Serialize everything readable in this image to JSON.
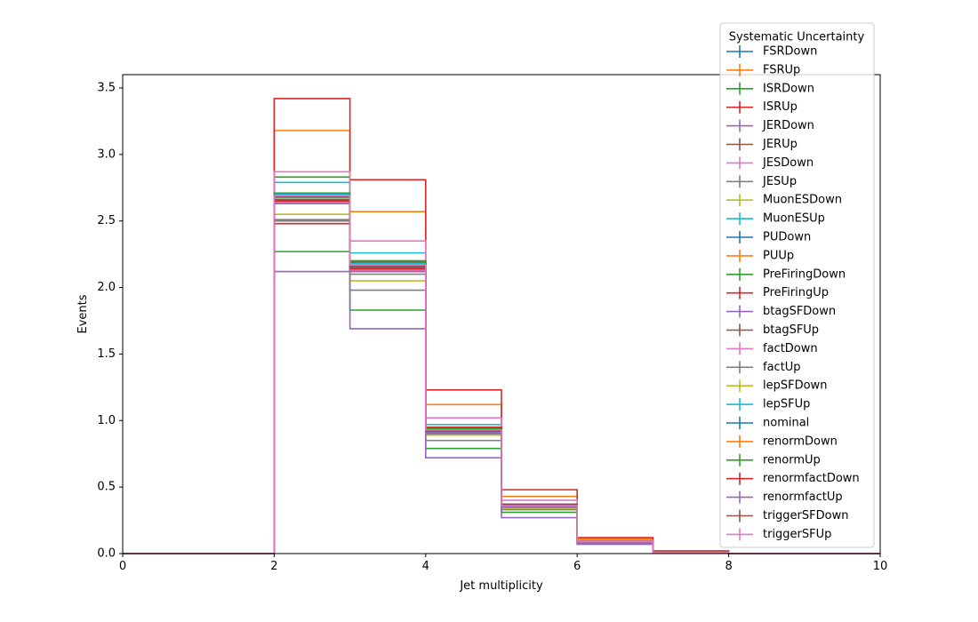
{
  "chart_data": {
    "type": "step",
    "xlabel": "Jet multiplicity",
    "ylabel": "Events",
    "xlim": [
      0,
      10
    ],
    "ylim": [
      0,
      3.6
    ],
    "x_ticks": [
      "0",
      "2",
      "4",
      "6",
      "8",
      "10"
    ],
    "y_ticks": [
      "0.0",
      "0.5",
      "1.0",
      "1.5",
      "2.0",
      "2.5",
      "3.0",
      "3.5"
    ],
    "grid": false,
    "legend": {
      "title": "Systematic Uncertainty",
      "placement": "top-right"
    },
    "bin_edges": [
      0,
      1,
      2,
      3,
      4,
      5,
      6,
      7,
      8,
      9,
      10
    ],
    "series": [
      {
        "name": "FSRDown",
        "color": "#1f77b4",
        "values": [
          0,
          0,
          2.69,
          2.16,
          0.93,
          0.36,
          0.09,
          0.01,
          0.0,
          0.0
        ]
      },
      {
        "name": "FSRUp",
        "color": "#ff7f0e",
        "values": [
          0,
          0,
          3.18,
          2.57,
          1.12,
          0.43,
          0.11,
          0.02,
          0.0,
          0.0
        ]
      },
      {
        "name": "ISRDown",
        "color": "#2ca02c",
        "values": [
          0,
          0,
          2.27,
          1.83,
          0.79,
          0.31,
          0.08,
          0.01,
          0.0,
          0.0
        ]
      },
      {
        "name": "ISRUp",
        "color": "#d62728",
        "values": [
          0,
          0,
          3.42,
          2.81,
          1.23,
          0.48,
          0.12,
          0.02,
          0.0,
          0.0
        ]
      },
      {
        "name": "JERDown",
        "color": "#9467bd",
        "values": [
          0,
          0,
          2.65,
          2.14,
          0.92,
          0.36,
          0.09,
          0.01,
          0.0,
          0.0
        ]
      },
      {
        "name": "JERUp",
        "color": "#8c564b",
        "values": [
          0,
          0,
          2.7,
          2.18,
          0.94,
          0.36,
          0.09,
          0.01,
          0.0,
          0.0
        ]
      },
      {
        "name": "JESDown",
        "color": "#e377c2",
        "values": [
          0,
          0,
          2.64,
          2.13,
          0.91,
          0.35,
          0.09,
          0.01,
          0.0,
          0.0
        ]
      },
      {
        "name": "JESUp",
        "color": "#7f7f7f",
        "values": [
          0,
          0,
          2.5,
          1.98,
          0.85,
          0.33,
          0.08,
          0.01,
          0.0,
          0.0
        ]
      },
      {
        "name": "MuonESDown",
        "color": "#bcbd22",
        "values": [
          0,
          0,
          2.55,
          2.05,
          0.89,
          0.34,
          0.09,
          0.01,
          0.0,
          0.0
        ]
      },
      {
        "name": "MuonESUp",
        "color": "#17becf",
        "values": [
          0,
          0,
          2.79,
          2.26,
          0.97,
          0.37,
          0.1,
          0.01,
          0.0,
          0.0
        ]
      },
      {
        "name": "PUDown",
        "color": "#1f77b4",
        "values": [
          0,
          0,
          2.68,
          2.16,
          0.93,
          0.36,
          0.09,
          0.01,
          0.0,
          0.0
        ]
      },
      {
        "name": "PUUp",
        "color": "#ff7f0e",
        "values": [
          0,
          0,
          2.69,
          2.17,
          0.93,
          0.36,
          0.09,
          0.01,
          0.0,
          0.0
        ]
      },
      {
        "name": "PreFiringDown",
        "color": "#2ca02c",
        "values": [
          0,
          0,
          2.83,
          2.2,
          0.95,
          0.37,
          0.09,
          0.01,
          0.0,
          0.0
        ]
      },
      {
        "name": "PreFiringUp",
        "color": "#d62728",
        "values": [
          0,
          0,
          2.48,
          2.12,
          0.91,
          0.35,
          0.09,
          0.01,
          0.0,
          0.0
        ]
      },
      {
        "name": "btagSFDown",
        "color": "#9467bd",
        "values": [
          0,
          0,
          2.12,
          1.69,
          0.72,
          0.27,
          0.07,
          0.01,
          0.0,
          0.0
        ]
      },
      {
        "name": "btagSFUp",
        "color": "#8c564b",
        "values": [
          0,
          0,
          2.71,
          2.19,
          0.95,
          0.37,
          0.09,
          0.01,
          0.0,
          0.0
        ]
      },
      {
        "name": "factDown",
        "color": "#e377c2",
        "values": [
          0,
          0,
          2.87,
          2.35,
          1.02,
          0.4,
          0.1,
          0.01,
          0.0,
          0.0
        ]
      },
      {
        "name": "factUp",
        "color": "#7f7f7f",
        "values": [
          0,
          0,
          2.51,
          2.1,
          0.9,
          0.35,
          0.09,
          0.01,
          0.0,
          0.0
        ]
      },
      {
        "name": "lepSFDown",
        "color": "#bcbd22",
        "values": [
          0,
          0,
          2.67,
          2.15,
          0.92,
          0.36,
          0.09,
          0.01,
          0.0,
          0.0
        ]
      },
      {
        "name": "lepSFUp",
        "color": "#17becf",
        "values": [
          0,
          0,
          2.7,
          2.18,
          0.94,
          0.37,
          0.09,
          0.01,
          0.0,
          0.0
        ]
      },
      {
        "name": "nominal",
        "color": "#1f77b4",
        "values": [
          0,
          0,
          2.68,
          2.16,
          0.93,
          0.36,
          0.09,
          0.01,
          0.0,
          0.0
        ]
      },
      {
        "name": "renormDown",
        "color": "#ff7f0e",
        "values": [
          0,
          0,
          2.69,
          2.17,
          0.93,
          0.36,
          0.09,
          0.01,
          0.0,
          0.0
        ]
      },
      {
        "name": "renormUp",
        "color": "#2ca02c",
        "values": [
          0,
          0,
          2.71,
          2.2,
          0.94,
          0.36,
          0.09,
          0.01,
          0.0,
          0.0
        ]
      },
      {
        "name": "renormfactDown",
        "color": "#d62728",
        "values": [
          0,
          0,
          2.65,
          2.14,
          0.95,
          0.37,
          0.09,
          0.01,
          0.0,
          0.0
        ]
      },
      {
        "name": "renormfactUp",
        "color": "#9467bd",
        "values": [
          0,
          0,
          2.63,
          2.12,
          0.91,
          0.35,
          0.09,
          0.01,
          0.0,
          0.0
        ]
      },
      {
        "name": "triggerSFDown",
        "color": "#8c564b",
        "values": [
          0,
          0,
          2.66,
          2.15,
          0.92,
          0.36,
          0.09,
          0.01,
          0.0,
          0.0
        ]
      },
      {
        "name": "triggerSFUp",
        "color": "#e377c2",
        "values": [
          0,
          0,
          2.69,
          2.17,
          0.93,
          0.36,
          0.09,
          0.01,
          0.0,
          0.0
        ]
      }
    ]
  }
}
